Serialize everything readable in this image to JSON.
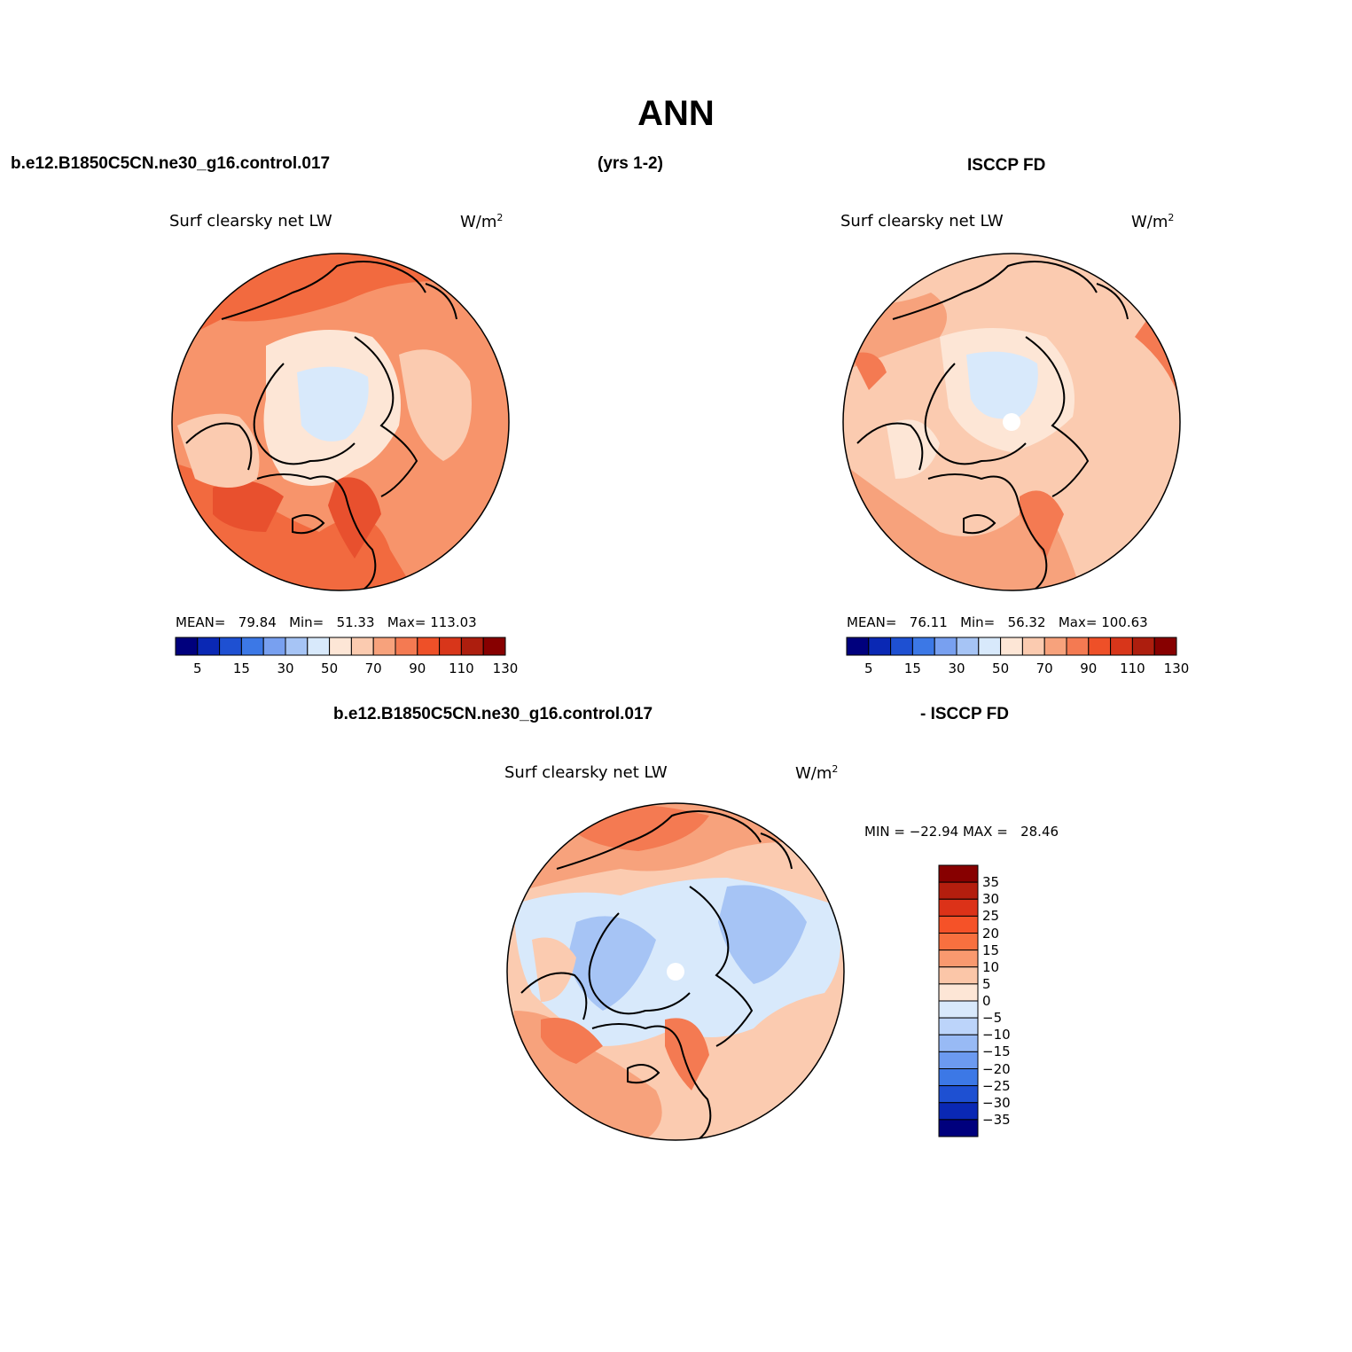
{
  "figure": {
    "title": "ANN",
    "top_left": "b.e12.B1850C5CN.ne30_g16.control.017",
    "top_center": "(yrs 1-2)",
    "top_right": "ISCCP FD",
    "bottom_left": "b.e12.B1850C5CN.ne30_g16.control.017",
    "bottom_right": "- ISCCP FD"
  },
  "colors": {
    "ocean_dark": "#f26a3f",
    "ocean_mid": "#f7946b",
    "land_light": "#fbcbb0",
    "pale": "#fde6d6",
    "ice": "#d8e9fb",
    "coast": "#000000"
  },
  "panels": [
    {
      "variable": "Surf clearsky net LW",
      "units": "W/m",
      "units_sup": "2",
      "mean_label": "MEAN=",
      "mean": "79.84",
      "min_label": "Min=",
      "min": "51.33",
      "max_label": "Max=",
      "max": "113.03"
    },
    {
      "variable": "Surf clearsky net LW",
      "units": "W/m",
      "units_sup": "2",
      "mean_label": "MEAN=",
      "mean": "76.11",
      "min_label": "Min=",
      "min": "56.32",
      "max_label": "Max=",
      "max": "100.63"
    },
    {
      "variable": "Surf clearsky net LW",
      "units": "W/m",
      "units_sup": "2",
      "minmax": "MIN = −22.94 MAX =   28.46"
    }
  ],
  "colorbar_abs": {
    "colors": [
      "#00007d",
      "#0a28b4",
      "#1e50d2",
      "#3c78e6",
      "#78a0f0",
      "#a6c4f5",
      "#d8e9fb",
      "#fde6d6",
      "#fbcbb0",
      "#f7a27c",
      "#f47a52",
      "#ee5028",
      "#d8361a",
      "#ad1e0e",
      "#870000"
    ],
    "ticks": [
      "5",
      "15",
      "30",
      "50",
      "70",
      "90",
      "110",
      "130"
    ]
  },
  "colorbar_diff": {
    "colors_top_to_bottom": [
      "#870000",
      "#b41e0e",
      "#dc3218",
      "#f55228",
      "#f8703f",
      "#f9996f",
      "#fbc6a8",
      "#fde6d6",
      "#d8e9fb",
      "#bcd4fa",
      "#98baf5",
      "#6c9af0",
      "#3c78e6",
      "#1e50d2",
      "#0a28b4",
      "#00007d"
    ],
    "labels_top_to_bottom": [
      "35",
      "30",
      "25",
      "20",
      "15",
      "10",
      "5",
      "0",
      "−5",
      "−10",
      "−15",
      "−20",
      "−25",
      "−30",
      "−35"
    ]
  }
}
